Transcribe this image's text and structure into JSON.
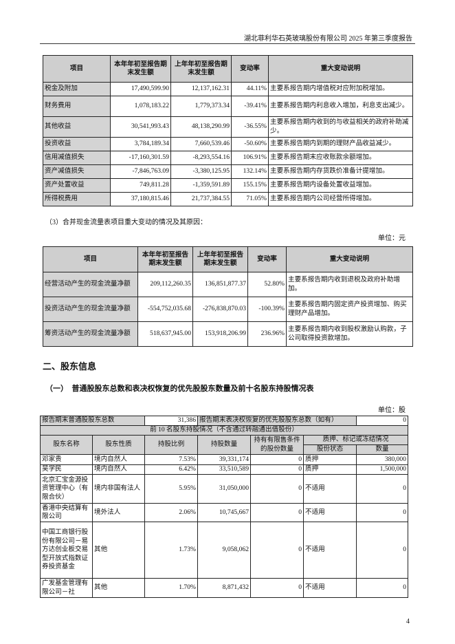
{
  "header": {
    "title": "湖北菲利华石英玻璃股份有限公司 2025 年第三季度报告"
  },
  "table1": {
    "columns": [
      "项目",
      "本年年初至报告期末发生额",
      "上年年初至报告期末发生额",
      "变动率",
      "重大变动说明"
    ],
    "rows": [
      [
        "税金及附加",
        "17,490,599.90",
        "12,137,162.31",
        "44.11%",
        "主要系报告期内增值税对应附加税增加。"
      ],
      [
        "财务费用",
        "1,078,183.22",
        "1,779,373.34",
        "-39.41%",
        "主要系报告期内利息收入增加，利息支出减少。"
      ],
      [
        "其他收益",
        "30,541,993.43",
        "48,138,290.99",
        "-36.55%",
        "主要系报告期内收到的与收益相关的政府补助减少。"
      ],
      [
        "投资收益",
        "3,784,189.34",
        "7,660,539.46",
        "-50.60%",
        "主要系报告期内到期的理财产品收益减少。"
      ],
      [
        "信用减值损失",
        "-17,160,301.59",
        "-8,293,554.16",
        "106.91%",
        "主要系报告期末应收账款余额增加。"
      ],
      [
        "资产减值损失",
        "-7,846,763.09",
        "-3,380,125.95",
        "132.14%",
        "主要系报告期内存货跌价准备计提增加。"
      ],
      [
        "资产处置收益",
        "749,811.28",
        "-1,359,591.89",
        "155.15%",
        "主要系报告期内设备处置收益增加。"
      ],
      [
        "所得税费用",
        "37,180,815.46",
        "21,737,384.55",
        "71.05%",
        "主要系报告期内公司经营所得增加。"
      ]
    ]
  },
  "section3": {
    "caption": "（3）合并现金流量表项目重大变动的情况及其原因：",
    "unit": "单位：元"
  },
  "table2": {
    "columns": [
      "项目",
      "本年年初至报告期末发生额",
      "上年年初至报告期末发生额",
      "变动率",
      "重大变动说明"
    ],
    "rows": [
      [
        "经营活动产生的现金流量净额",
        "209,112,260.35",
        "136,851,877.37",
        "52.80%",
        "主要系报告期内收到退税及政府补助增加。"
      ],
      [
        "投资活动产生的现金流量净额",
        "-554,752,035.68",
        "-276,838,870.03",
        "-100.39%",
        "主要系报告期内固定资产投资增加、购买理财产品增加。"
      ],
      [
        "筹资活动产生的现金流量净额",
        "518,637,945.00",
        "153,918,206.99",
        "236.96%",
        "主要系报告期内收到股权激励认购款，子公司取得投资款增加。"
      ]
    ]
  },
  "section_two": {
    "title": "二、股东信息"
  },
  "subsection_one": {
    "title": "（一）　普通股股东总数和表决权恢复的优先股股东数量及前十名股东持股情况表",
    "unit": "单位：股"
  },
  "table3": {
    "total_label": "报告期末普通股股东总数",
    "total_value": "31,386",
    "pref_label": "报告期末表决权恢复的优先股股东总数（如有）",
    "pref_value": "0",
    "top10_title": "前 10 名股东持股情况（不含通过转融通出借股份）",
    "columns": [
      "股东名称",
      "股东性质",
      "持股比例",
      "持股数量",
      "持有有限售条件的股份数量",
      "质押、标记或冻结情况"
    ],
    "sub_columns": [
      "股份状态",
      "数量"
    ],
    "rows": [
      [
        "邓家贵",
        "境内自然人",
        "7.53%",
        "39,331,174",
        "0",
        "质押",
        "380,000"
      ],
      [
        "吴学民",
        "境内自然人",
        "6.42%",
        "33,510,589",
        "0",
        "质押",
        "1,500,000"
      ],
      [
        "北京汇宝金源投资管理中心（有限合伙）",
        "境内非国有法人",
        "5.95%",
        "31,050,000",
        "0",
        "不适用",
        "0"
      ],
      [
        "香港中央结算有限公司",
        "境外法人",
        "2.06%",
        "10,745,667",
        "0",
        "不适用",
        "0"
      ],
      [
        "中国工商银行股份有限公司－易方达创业板交易型开放式指数证券投资基金",
        "其他",
        "1.73%",
        "9,058,062",
        "0",
        "不适用",
        "0"
      ],
      [
        "广发基金管理有限公司－社",
        "其他",
        "1.70%",
        "8,871,432",
        "0",
        "不适用",
        "0"
      ]
    ]
  },
  "footer": {
    "page_number": "4"
  }
}
